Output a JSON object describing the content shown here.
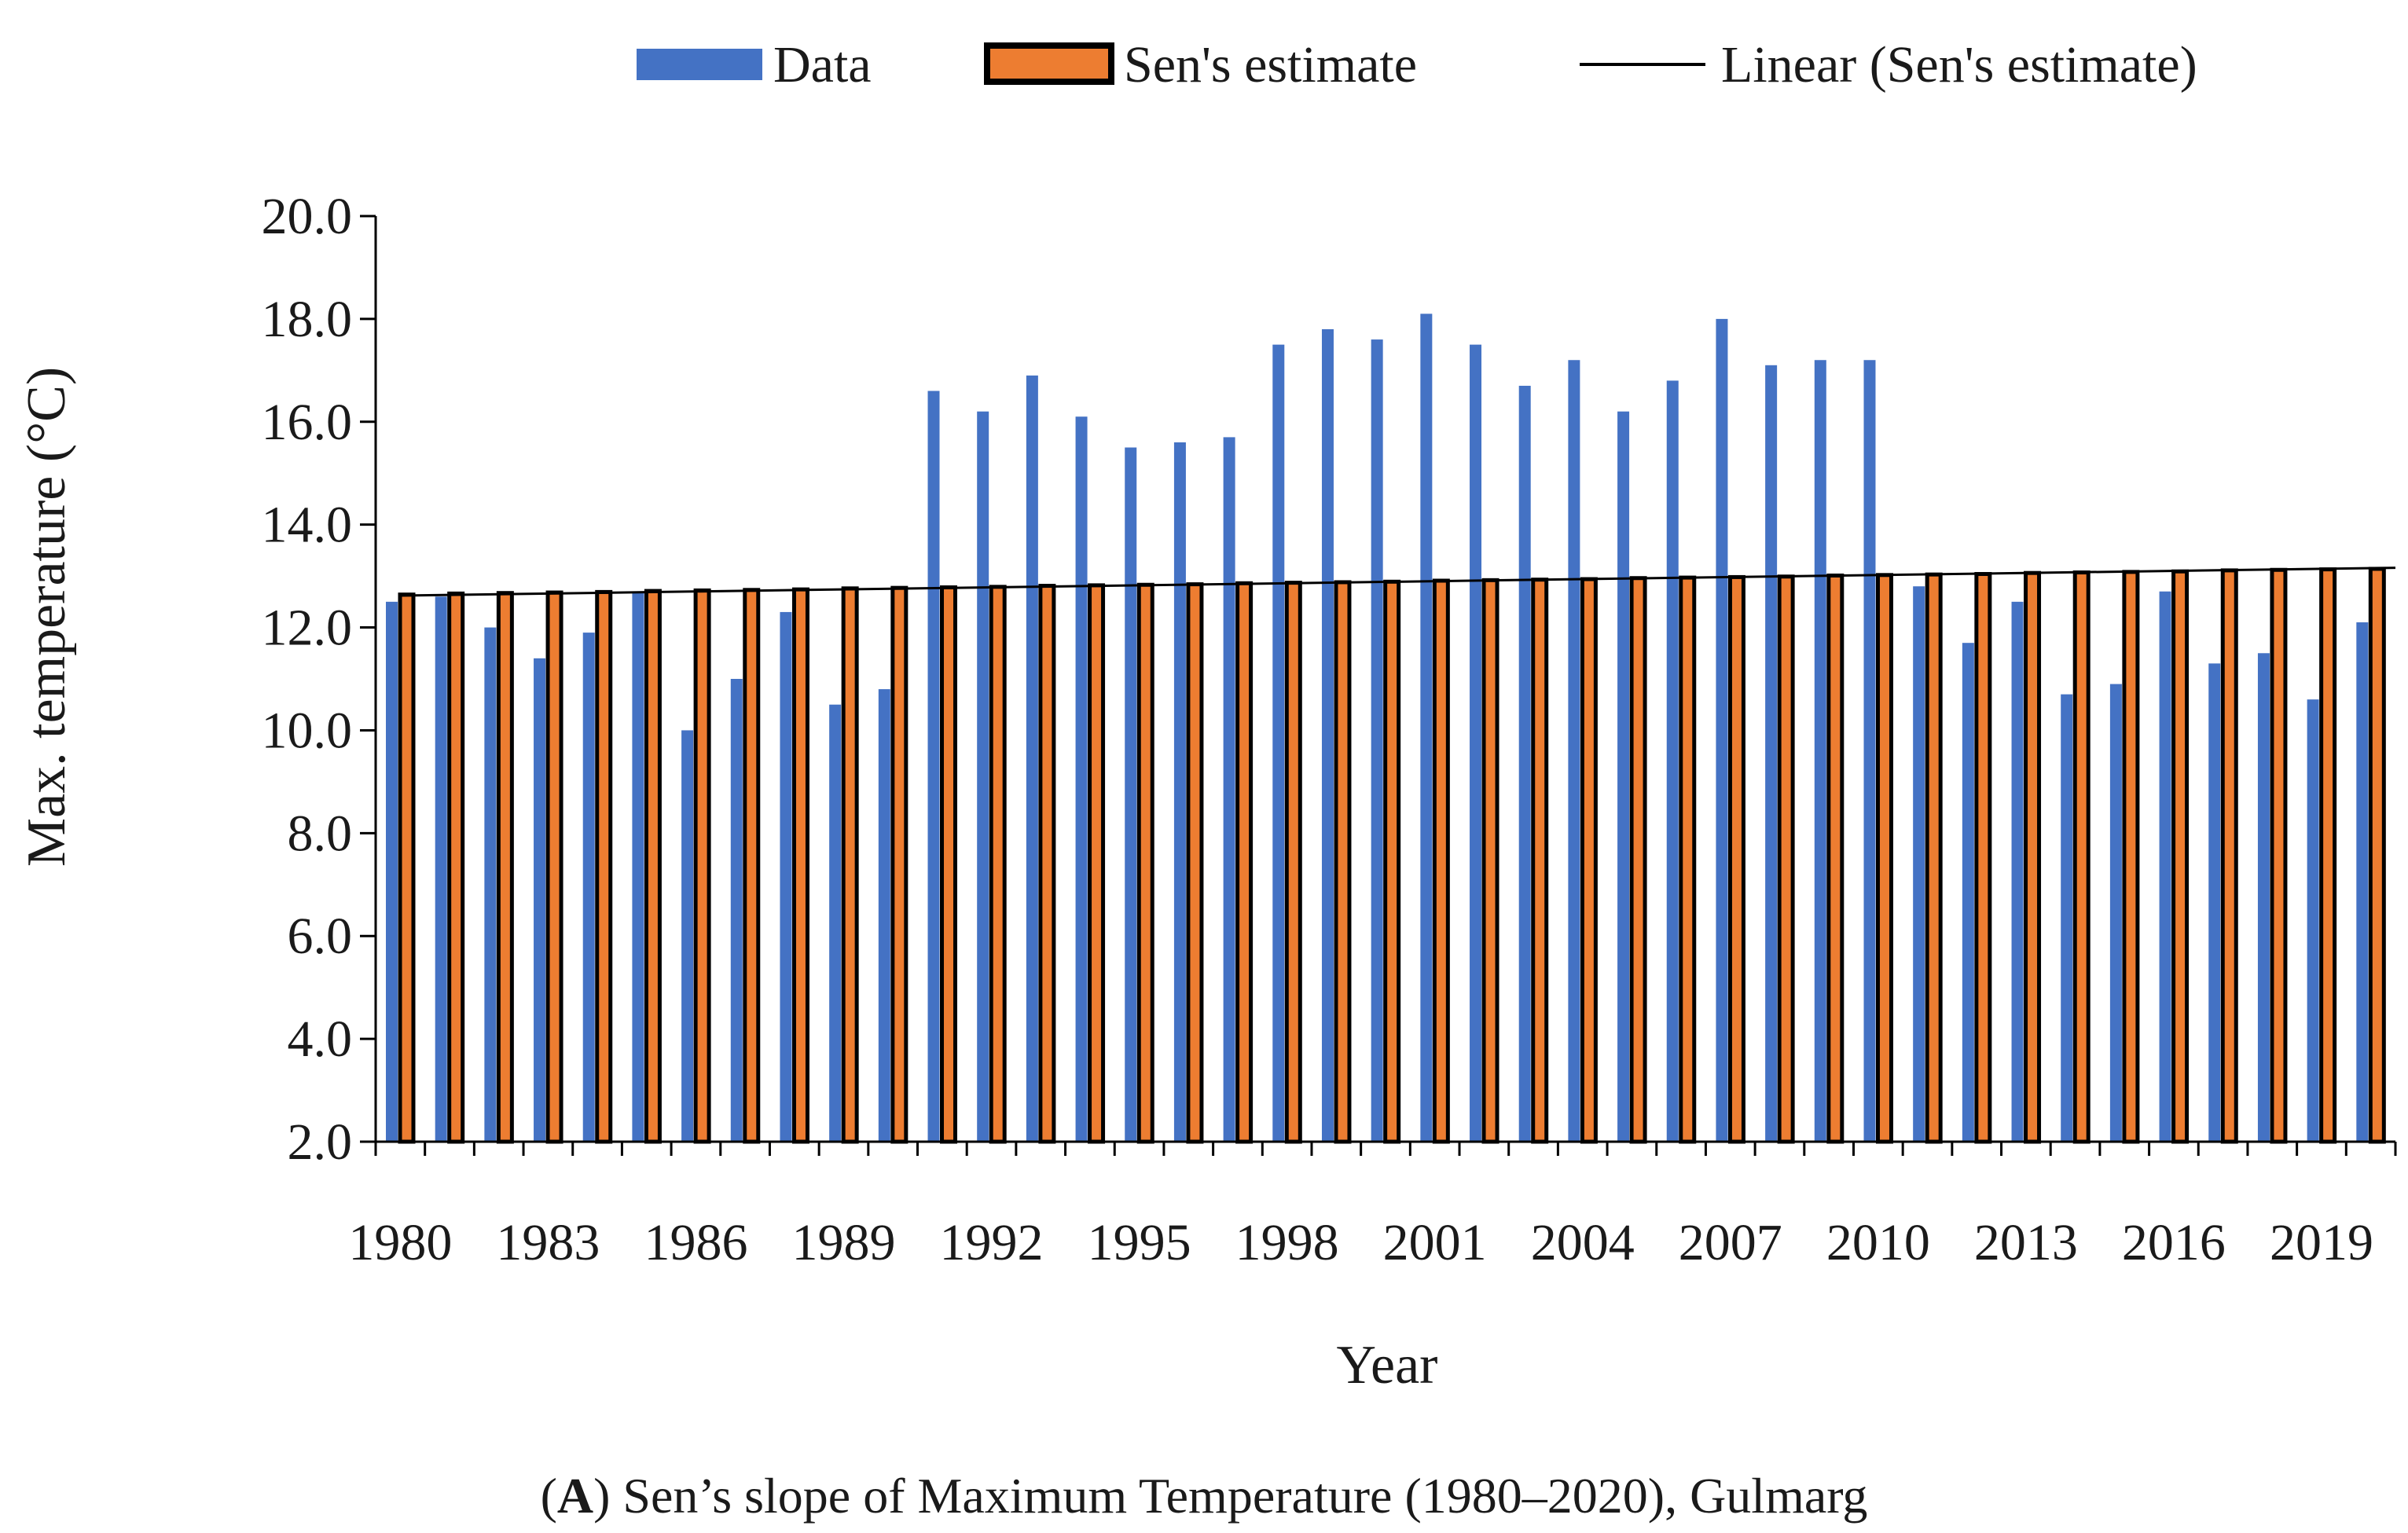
{
  "legend": {
    "data_label": "Data",
    "sen_label": "Sen's estimate",
    "linear_label": "Linear (Sen's estimate)"
  },
  "colors": {
    "data": "#4472C4",
    "sen_fill": "#ED7D31",
    "sen_stroke": "#000000",
    "trend": "#000000",
    "axis": "#000000"
  },
  "caption": {
    "letter": "A",
    "open": "(",
    "close": ")",
    "text": " Sen’s slope of Maximum Temperature (1980–2020), Gulmarg"
  },
  "chart_data": {
    "type": "bar",
    "title": "",
    "xlabel": "Year",
    "ylabel": "Max. temperature (°C)",
    "ylim": [
      2.0,
      20.0
    ],
    "yticks": [
      "2.0",
      "4.0",
      "6.0",
      "8.0",
      "10.0",
      "12.0",
      "14.0",
      "16.0",
      "18.0",
      "20.0"
    ],
    "categories": [
      1980,
      1981,
      1982,
      1983,
      1984,
      1985,
      1986,
      1987,
      1988,
      1989,
      1990,
      1991,
      1992,
      1993,
      1994,
      1995,
      1996,
      1997,
      1998,
      1999,
      2000,
      2001,
      2002,
      2003,
      2004,
      2005,
      2006,
      2007,
      2008,
      2009,
      2010,
      2011,
      2012,
      2013,
      2014,
      2015,
      2016,
      2017,
      2018,
      2019,
      2020
    ],
    "xtick_labels": [
      "1980",
      "1983",
      "1986",
      "1989",
      "1992",
      "1995",
      "1998",
      "2001",
      "2004",
      "2007",
      "2010",
      "2013",
      "2016",
      "2019"
    ],
    "series": [
      {
        "name": "Data",
        "values": [
          12.5,
          12.6,
          12.0,
          11.4,
          11.9,
          12.7,
          10.0,
          11.0,
          12.3,
          10.5,
          10.8,
          16.6,
          16.2,
          16.9,
          16.1,
          15.5,
          15.6,
          15.7,
          17.5,
          17.8,
          17.6,
          18.1,
          17.5,
          16.7,
          17.2,
          16.2,
          16.8,
          18.0,
          17.1,
          17.2,
          17.2,
          12.8,
          11.7,
          12.5,
          10.7,
          10.9,
          12.7,
          11.3,
          11.5,
          10.6,
          12.1
        ]
      },
      {
        "name": "Sen's estimate",
        "values": [
          12.64,
          12.66,
          12.67,
          12.68,
          12.69,
          12.71,
          12.72,
          12.73,
          12.74,
          12.76,
          12.77,
          12.78,
          12.79,
          12.81,
          12.82,
          12.83,
          12.84,
          12.86,
          12.87,
          12.88,
          12.89,
          12.91,
          12.92,
          12.93,
          12.94,
          12.96,
          12.97,
          12.98,
          12.99,
          13.01,
          13.02,
          13.03,
          13.04,
          13.06,
          13.07,
          13.08,
          13.09,
          13.11,
          13.12,
          13.13,
          13.14
        ]
      }
    ],
    "trendline": {
      "name": "Linear (Sen's estimate)",
      "start": 12.62,
      "end": 13.16
    }
  }
}
